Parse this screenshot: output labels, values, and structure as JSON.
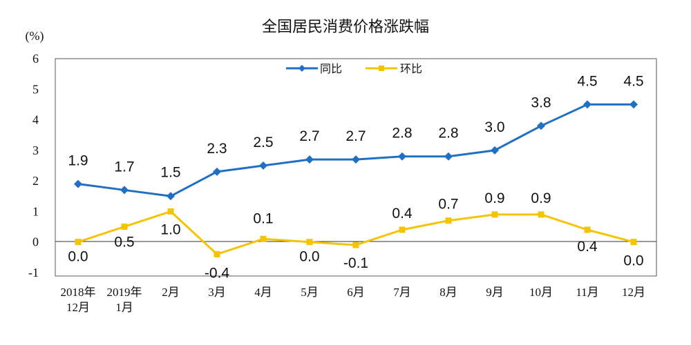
{
  "chart_data": {
    "type": "line",
    "title": "全国居民消费价格涨跌幅",
    "unit": "(%)",
    "ylim": [
      -1,
      6
    ],
    "yticks": [
      "-1",
      "0",
      "1",
      "2",
      "3",
      "4",
      "5",
      "6"
    ],
    "categories": [
      [
        "2018年",
        "12月"
      ],
      [
        "2019年",
        "1月"
      ],
      [
        "2月"
      ],
      [
        "3月"
      ],
      [
        "4月"
      ],
      [
        "5月"
      ],
      [
        "6月"
      ],
      [
        "7月"
      ],
      [
        "8月"
      ],
      [
        "9月"
      ],
      [
        "10月"
      ],
      [
        "11月"
      ],
      [
        "12月"
      ]
    ],
    "series": [
      {
        "name": "同比",
        "color": "#1f6fc5",
        "marker": "diamond",
        "values": [
          1.9,
          1.7,
          1.5,
          2.3,
          2.5,
          2.7,
          2.7,
          2.8,
          2.8,
          3.0,
          3.8,
          4.5,
          4.5
        ],
        "labels": [
          "1.9",
          "1.7",
          "1.5",
          "2.3",
          "2.5",
          "2.7",
          "2.7",
          "2.8",
          "2.8",
          "3.0",
          "3.8",
          "4.5",
          "4.5"
        ]
      },
      {
        "name": "环比",
        "color": "#f5c400",
        "marker": "square",
        "values": [
          0.0,
          0.5,
          1.0,
          -0.4,
          0.1,
          0.0,
          -0.1,
          0.4,
          0.7,
          0.9,
          0.9,
          0.4,
          0.0
        ],
        "labels": [
          "0.0",
          "0.5",
          "1.0",
          "-0.4",
          "0.1",
          "0.0",
          "-0.1",
          "0.4",
          "0.7",
          "0.9",
          "0.9",
          "0.4",
          "0.0"
        ]
      }
    ],
    "legend": "top-center"
  }
}
